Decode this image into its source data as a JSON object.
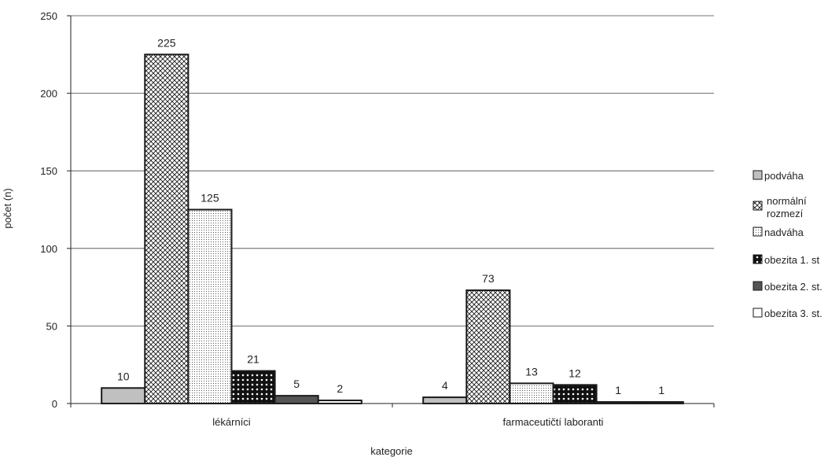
{
  "chart_data": {
    "type": "bar",
    "title": "",
    "xlabel": "kategorie",
    "ylabel": "počet (n)",
    "ylim": [
      0,
      250
    ],
    "yticks": [
      0,
      50,
      100,
      150,
      200,
      250
    ],
    "grid": true,
    "legend_position": "right",
    "categories": [
      "lékárníci",
      "farmaceutičtí laboranti"
    ],
    "series": [
      {
        "name": "podváha",
        "values": [
          10,
          4
        ],
        "data_labels": [
          "10",
          "4"
        ],
        "fill": "#c0c0c0",
        "pattern": "solid"
      },
      {
        "name": "normální rozmezí",
        "values": [
          225,
          73
        ],
        "data_labels": [
          "225",
          "73"
        ],
        "fill": "#ffffff",
        "pattern": "crosshatch"
      },
      {
        "name": "nadváha",
        "values": [
          125,
          13
        ],
        "data_labels": [
          "125",
          "13"
        ],
        "fill": "#ffffff",
        "pattern": "dots"
      },
      {
        "name": "obezita 1. st",
        "values": [
          21,
          12
        ],
        "data_labels": [
          "21",
          "12"
        ],
        "fill": "#1a1a1a",
        "pattern": "dark-dots"
      },
      {
        "name": "obezita 2. st.",
        "values": [
          5,
          1
        ],
        "data_labels": [
          "5",
          "1"
        ],
        "fill": "#555555",
        "pattern": "solid"
      },
      {
        "name": "obezita 3. st.",
        "values": [
          2,
          1
        ],
        "data_labels": [
          "2",
          "1"
        ],
        "fill": "#ffffff",
        "pattern": "solid"
      }
    ]
  }
}
